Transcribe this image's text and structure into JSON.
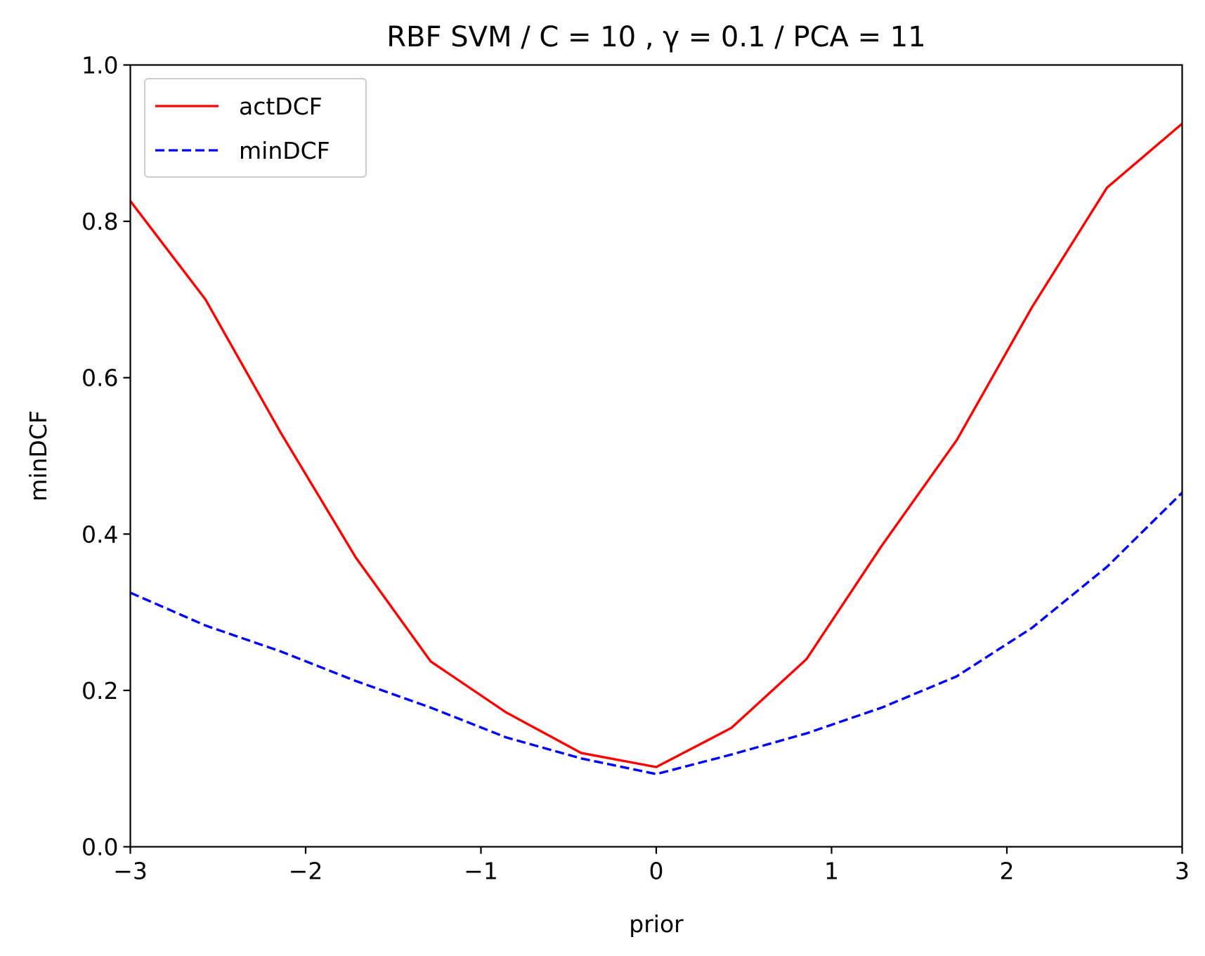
{
  "chart_data": {
    "type": "line",
    "title": "RBF SVM / C = 10 , γ = 0.1 / PCA = 11",
    "xlabel": "prior",
    "ylabel": "minDCF",
    "xlim": [
      -3,
      3
    ],
    "ylim": [
      0,
      1
    ],
    "xticks": [
      -3,
      -2,
      -1,
      0,
      1,
      2,
      3
    ],
    "xtick_labels": [
      "−3",
      "−2",
      "−1",
      "0",
      "1",
      "2",
      "3"
    ],
    "yticks": [
      0,
      0.2,
      0.4,
      0.6,
      0.8,
      1.0
    ],
    "ytick_labels": [
      "0.0",
      "0.2",
      "0.4",
      "0.6",
      "0.8",
      "1.0"
    ],
    "grid": false,
    "legend_position": "top-left",
    "x": [
      -3.0,
      -2.571,
      -2.143,
      -1.714,
      -1.286,
      -0.857,
      -0.429,
      0.0,
      0.429,
      0.857,
      1.286,
      1.714,
      2.143,
      2.571,
      3.0
    ],
    "series": [
      {
        "name": "actDCF",
        "color": "#ff0000",
        "style": "solid",
        "values": [
          0.826,
          0.7,
          0.53,
          0.37,
          0.237,
          0.172,
          0.12,
          0.102,
          0.152,
          0.24,
          0.385,
          0.52,
          0.69,
          0.843,
          0.925
        ]
      },
      {
        "name": "minDCF",
        "color": "#0000ff",
        "style": "dashed",
        "values": [
          0.325,
          0.283,
          0.25,
          0.212,
          0.178,
          0.14,
          0.113,
          0.093,
          0.118,
          0.145,
          0.178,
          0.218,
          0.28,
          0.358,
          0.453
        ]
      }
    ]
  }
}
